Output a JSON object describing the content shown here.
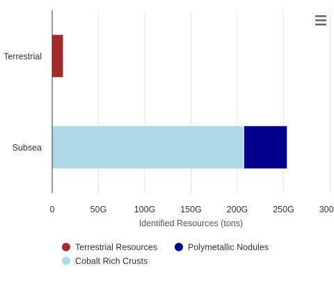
{
  "chart_data": {
    "type": "bar",
    "orientation": "horizontal",
    "stacked": true,
    "categories": [
      "Terrestrial",
      "Subsea"
    ],
    "series": [
      {
        "name": "Terrestrial Resources",
        "color": "#a52a2a",
        "values": [
          12,
          0
        ]
      },
      {
        "name": "Cobalt Rich Crusts",
        "color": "#add8e6",
        "values": [
          0,
          207
        ]
      },
      {
        "name": "Polymetallic Nodules",
        "color": "#00008b",
        "values": [
          0,
          47
        ]
      }
    ],
    "xlabel": "Identified Resources (tons)",
    "xlim": [
      0,
      300
    ],
    "xticks": [
      "0",
      "50G",
      "100G",
      "150G",
      "200G",
      "250G",
      "300G"
    ],
    "xtick_values": [
      0,
      50,
      100,
      150,
      200,
      250,
      300
    ],
    "grid": true,
    "legend_position": "bottom-left"
  },
  "menu_icon": "hamburger-menu-icon"
}
